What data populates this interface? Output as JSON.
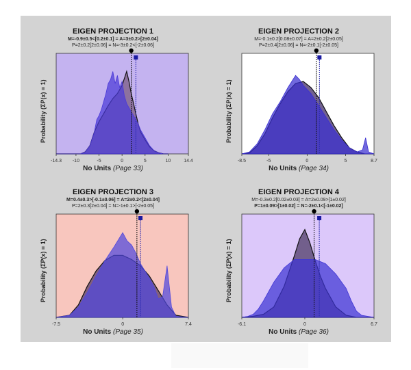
{
  "chart_data": [
    {
      "type": "area",
      "title": "EIGEN PROJECTION 1",
      "subtitle_lines": [
        "M=-0.9±0.5<[0.2±0.1] = A=3±0.2>[2±0.04]",
        "P=2±0.2[2±0.06] = N=-3±0.2<[-2±0.06]"
      ],
      "subtitle_bold": [
        true,
        false
      ],
      "ylabel": "Probability (ΣP(x) = 1)",
      "xlabel": "No Units",
      "xlabel_page": "(Page 33)",
      "xlim": [
        -14.3,
        14.4
      ],
      "xticks": [
        -14.3,
        -10,
        -5,
        0,
        5,
        10,
        14.4
      ],
      "background": "#c4b3f0",
      "series": [
        {
          "color": "#8a6f9a",
          "x": [
            -14.3,
            -9,
            -8,
            -7,
            -6,
            -5,
            -4,
            -3,
            -2,
            -1,
            0,
            1,
            1.5,
            2,
            2.5,
            3,
            3.5,
            4,
            5,
            6,
            7,
            8,
            9,
            10
          ],
          "y": [
            0,
            0,
            0.02,
            0.08,
            0.22,
            0.32,
            0.4,
            0.48,
            0.55,
            0.6,
            0.68,
            0.82,
            0.72,
            0.6,
            0.5,
            0.4,
            0.3,
            0.22,
            0.14,
            0.07,
            0.03,
            0.01,
            0,
            0
          ]
        },
        {
          "color": "#4b3ad8",
          "x": [
            -14.3,
            -9,
            -8,
            -7,
            -6,
            -5.5,
            -5,
            -4.5,
            -4,
            -3.5,
            -3,
            -2.5,
            -2,
            -1.5,
            -1,
            -0.5,
            0,
            0.5,
            1,
            1.5,
            2,
            2.5,
            3,
            3.5,
            4,
            5,
            6,
            7,
            8,
            9,
            10
          ],
          "y": [
            0,
            0,
            0.02,
            0.08,
            0.22,
            0.34,
            0.38,
            0.44,
            0.52,
            0.6,
            0.7,
            0.74,
            0.82,
            0.7,
            0.78,
            0.66,
            0.72,
            0.58,
            0.5,
            0.46,
            0.42,
            0.38,
            0.34,
            0.3,
            0.24,
            0.16,
            0.08,
            0.03,
            0.01,
            0,
            0
          ]
        }
      ],
      "markers": {
        "a": 2.0,
        "b": 3.0
      }
    },
    {
      "type": "area",
      "title": "EIGEN PROJECTION 2",
      "subtitle_lines": [
        "M=-0.1±0.2[0.08±0.07] = A=2±0.2[2±0.05]",
        "P=2±0.4[2±0.06] = N=-2±0.1[-2±0.05]"
      ],
      "subtitle_bold": [
        false,
        false
      ],
      "ylabel": "Probability (ΣP(x) = 1)",
      "xlabel": "No Units",
      "xlabel_page": "(Page 34)",
      "xlim": [
        -8.5,
        8.7
      ],
      "xticks": [
        -8.5,
        -5,
        0,
        5,
        8.7
      ],
      "background": "#ffffff",
      "series": [
        {
          "color": "#6a5a8a",
          "x": [
            -8.5,
            -7.5,
            -6.5,
            -5.5,
            -4.5,
            -3.5,
            -2.5,
            -1.5,
            -0.5,
            0.5,
            1.5,
            2.5,
            3.5,
            4.5,
            5.5,
            6.5,
            7.5,
            8.7
          ],
          "y": [
            0,
            0.01,
            0.08,
            0.2,
            0.36,
            0.5,
            0.62,
            0.7,
            0.72,
            0.66,
            0.56,
            0.42,
            0.28,
            0.16,
            0.06,
            0.02,
            0,
            0
          ]
        },
        {
          "color": "#3a2fd0",
          "x": [
            -8.5,
            -7.5,
            -6.5,
            -5.5,
            -4.5,
            -3.5,
            -2.5,
            -1.5,
            -1,
            -0.5,
            0.5,
            1.5,
            2.5,
            3.5,
            4.5,
            5.5,
            6.5,
            7.2,
            7.6,
            8,
            8.7
          ],
          "y": [
            0,
            0.02,
            0.1,
            0.24,
            0.4,
            0.52,
            0.66,
            0.78,
            0.74,
            0.68,
            0.6,
            0.48,
            0.36,
            0.24,
            0.14,
            0.06,
            0.02,
            0.04,
            0.16,
            0.02,
            0
          ]
        }
      ],
      "markers": {
        "a": 1.2,
        "b": 1.6
      }
    },
    {
      "type": "area",
      "title": "EIGEN PROJECTION 3",
      "subtitle_lines": [
        "M=0.4±0.3>[-0.1±0.06] = A=2±0.2<[2±0.04]",
        "P=2±0.3[2±0.04] = N=-1±0.1>[-2±0.05]"
      ],
      "subtitle_bold": [
        true,
        false
      ],
      "ylabel": "Probability (ΣP(x) = 1)",
      "xlabel": "No Units",
      "xlabel_page": "(Page 35)",
      "xlim": [
        -7.5,
        7.4
      ],
      "xticks": [
        -7.5,
        0,
        7.4
      ],
      "background": "#f8c6be",
      "series": [
        {
          "color": "#7a5a7a",
          "x": [
            -7.5,
            -6,
            -5,
            -4,
            -3,
            -2,
            -1,
            0,
            1,
            2,
            3,
            4,
            5,
            6,
            7.4
          ],
          "y": [
            0,
            0.02,
            0.12,
            0.3,
            0.45,
            0.55,
            0.6,
            0.6,
            0.56,
            0.5,
            0.4,
            0.26,
            0.12,
            0.02,
            0
          ]
        },
        {
          "color": "#5048dc",
          "x": [
            -7.5,
            -6,
            -5,
            -4,
            -3,
            -2,
            -1,
            0,
            0.5,
            1,
            1.5,
            2,
            3,
            3.5,
            4,
            4.5,
            5,
            5.5,
            6,
            7.4
          ],
          "y": [
            0,
            0.02,
            0.1,
            0.24,
            0.4,
            0.55,
            0.68,
            0.82,
            0.74,
            0.7,
            0.62,
            0.52,
            0.38,
            0.3,
            0.18,
            0.2,
            0.5,
            0.1,
            0.01,
            0
          ]
        }
      ],
      "markers": {
        "a": 1.6,
        "b": 2.0
      }
    },
    {
      "type": "area",
      "title": "EIGEN PROJECTION 4",
      "subtitle_lines": [
        "M=-0.3±0.2[0.02±0.03] = A=2±0.09>[1±0.02]",
        "P=1±0.09>[1±0.02] = N=-2±0.1<[-1±0.02]"
      ],
      "subtitle_bold": [
        false,
        true
      ],
      "ylabel": "Probability (ΣP(x) = 1)",
      "xlabel": "No Units",
      "xlabel_page": "(Page 36)",
      "xlim": [
        -6.1,
        6.7
      ],
      "xticks": [
        -6.1,
        0,
        6.7
      ],
      "background": "#dcc8fa",
      "series": [
        {
          "color": "#6b5a86",
          "x": [
            -6.1,
            -5,
            -4,
            -3,
            -2,
            -1,
            -0.5,
            0,
            0.5,
            1,
            1.5,
            2,
            3,
            4,
            5,
            6.7
          ],
          "y": [
            0,
            0.01,
            0.03,
            0.1,
            0.3,
            0.6,
            0.76,
            0.85,
            0.72,
            0.55,
            0.4,
            0.28,
            0.1,
            0.02,
            0,
            0
          ]
        },
        {
          "color": "#3f35d4",
          "x": [
            -6.1,
            -5.5,
            -5,
            -4.5,
            -4,
            -3,
            -2,
            -1,
            0,
            1,
            2,
            3,
            4,
            4.5,
            5,
            5.5,
            6.7
          ],
          "y": [
            0,
            0.01,
            0.03,
            0.08,
            0.16,
            0.34,
            0.48,
            0.56,
            0.56,
            0.56,
            0.52,
            0.42,
            0.28,
            0.16,
            0.06,
            0.02,
            0
          ]
        }
      ],
      "markers": {
        "a": 0.9,
        "b": 1.4
      }
    }
  ]
}
